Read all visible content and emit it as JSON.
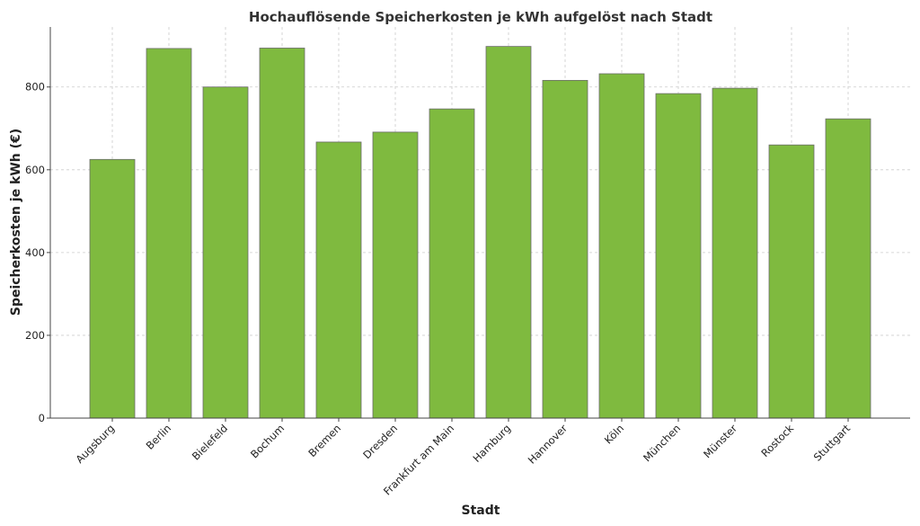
{
  "chart_data": {
    "type": "bar",
    "title": "Hochauflösende Speicherkosten je kWh aufgelöst nach Stadt",
    "xlabel": "Stadt",
    "ylabel": "Speicherkosten je kWh (€)",
    "categories": [
      "Augsburg",
      "Berlin",
      "Bielefeld",
      "Bochum",
      "Bremen",
      "Dresden",
      "Frankfurt am Main",
      "Hamburg",
      "Hannover",
      "Köln",
      "München",
      "Münster",
      "Rostock",
      "Stuttgart"
    ],
    "values": [
      625,
      893,
      800,
      894,
      667,
      691,
      747,
      898,
      816,
      832,
      784,
      797,
      660,
      723
    ],
    "ylim": [
      0,
      945
    ],
    "yticks": [
      0,
      200,
      400,
      600,
      800
    ],
    "grid": true,
    "bar_color": "#7fba3f",
    "edge_color": "#6b6b6b"
  }
}
